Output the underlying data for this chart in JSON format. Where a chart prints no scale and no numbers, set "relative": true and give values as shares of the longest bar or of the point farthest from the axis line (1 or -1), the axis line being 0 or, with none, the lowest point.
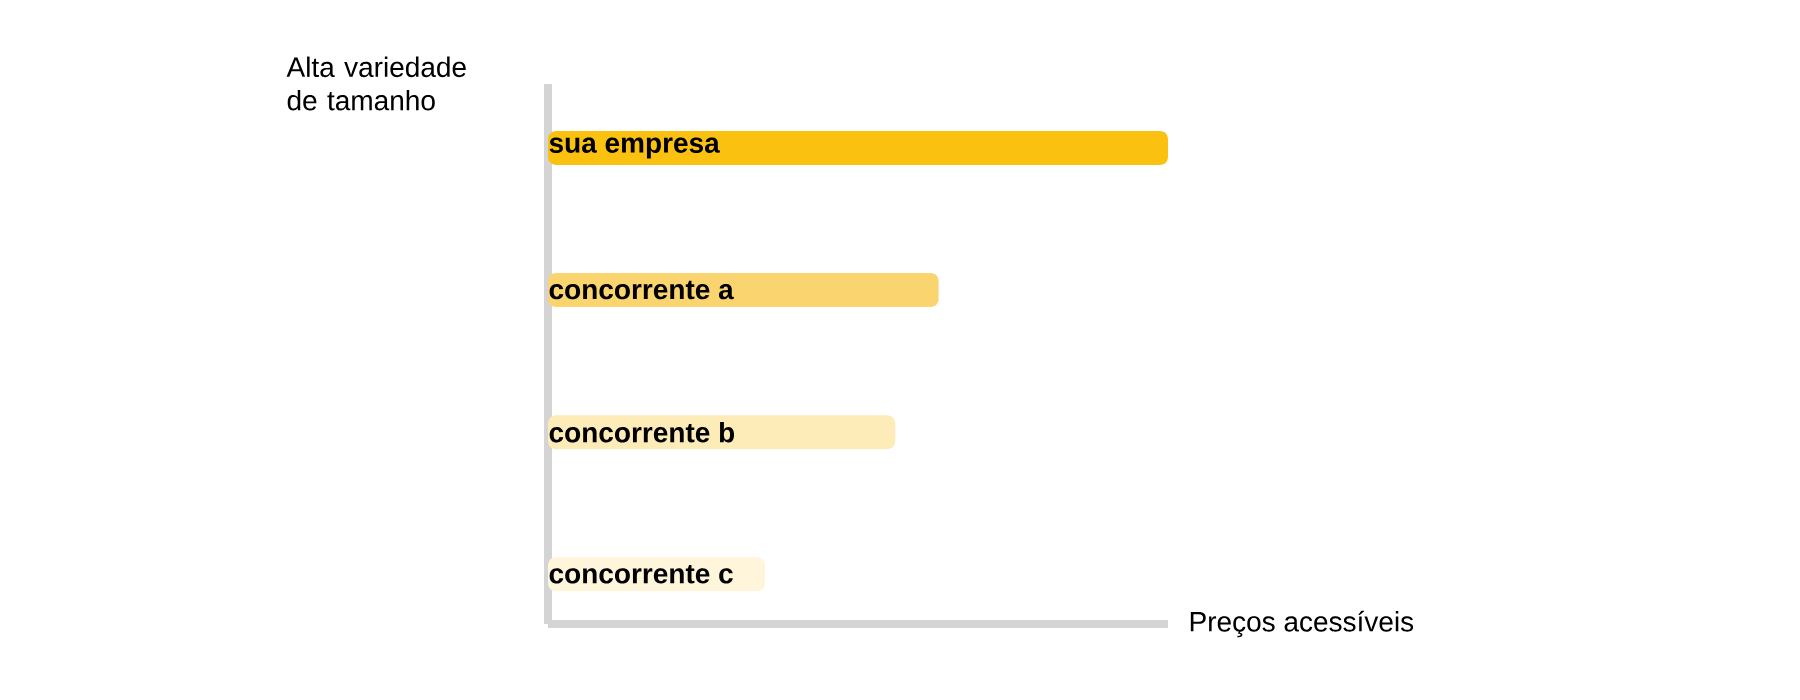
{
  "chart_data": {
    "type": "bar",
    "orientation": "horizontal",
    "relative": true,
    "ylabel": "Alta variedade de tamanho",
    "xlabel": "Preços acessíveis",
    "categories": [
      "sua empresa",
      "concorrente a",
      "concorrente b",
      "concorrente c"
    ],
    "values": [
      1,
      0.63,
      0.56,
      0.35
    ],
    "colors": [
      "#fbc110",
      "#fad46e",
      "#fdecb7",
      "#fef5da"
    ]
  }
}
